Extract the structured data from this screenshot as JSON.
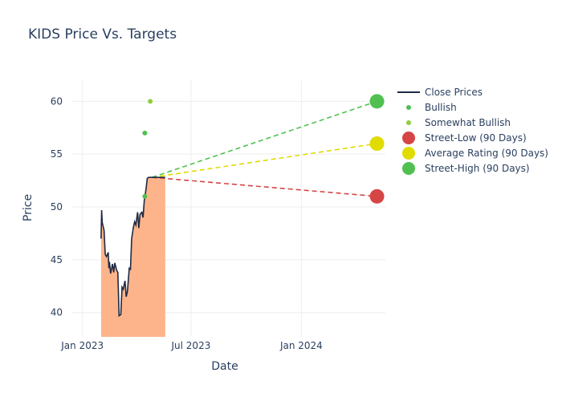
{
  "chart_data": {
    "type": "line",
    "title": "KIDS Price Vs. Targets",
    "xlabel": "Date",
    "ylabel": "Price",
    "xlim": [
      "2022-12-15",
      "2024-05-20"
    ],
    "ylim": [
      37.7,
      62
    ],
    "x_ticks": [
      {
        "date": "2023-01-01",
        "label": "Jan 2023"
      },
      {
        "date": "2023-07-01",
        "label": "Jul 2023"
      },
      {
        "date": "2024-01-01",
        "label": "Jan 2024"
      }
    ],
    "y_ticks": [
      40,
      45,
      50,
      55,
      60
    ],
    "grid": true,
    "legend_position": "right",
    "colors": {
      "close": "#1f2a44",
      "fill": "#fdb48a",
      "bullish": "#50c050",
      "somewhat_bullish": "#8fcf3c",
      "street_low": "#d64545",
      "average": "#e0dc00",
      "street_high": "#50c050",
      "grid": "#eeeeee"
    },
    "close_prices": {
      "name": "Close Prices",
      "x": [
        "2023-02-01",
        "2023-02-02",
        "2023-02-03",
        "2023-02-06",
        "2023-02-08",
        "2023-02-10",
        "2023-02-13",
        "2023-02-14",
        "2023-02-15",
        "2023-02-17",
        "2023-02-20",
        "2023-02-22",
        "2023-02-24",
        "2023-02-27",
        "2023-03-01",
        "2023-03-03",
        "2023-03-06",
        "2023-03-08",
        "2023-03-10",
        "2023-03-13",
        "2023-03-15",
        "2023-03-17",
        "2023-03-20",
        "2023-03-22",
        "2023-03-24",
        "2023-03-27",
        "2023-03-29",
        "2023-03-31",
        "2023-04-03",
        "2023-04-05",
        "2023-04-07",
        "2023-04-10",
        "2023-04-12",
        "2023-04-14",
        "2023-04-17",
        "2023-04-19",
        "2023-04-21",
        "2023-04-24",
        "2023-04-26",
        "2023-04-28",
        "2023-05-01",
        "2023-05-03",
        "2023-05-05",
        "2023-05-08",
        "2023-05-10",
        "2023-05-12",
        "2023-05-15",
        "2023-05-17",
        "2023-05-19"
      ],
      "y": [
        47.0,
        49.7,
        48.5,
        47.8,
        45.5,
        45.3,
        45.7,
        44.2,
        44.8,
        43.7,
        44.6,
        43.8,
        44.7,
        44.0,
        43.8,
        39.7,
        39.8,
        42.4,
        42.2,
        43.0,
        41.5,
        42.0,
        44.2,
        44.1,
        47.0,
        48.1,
        48.6,
        48.3,
        49.5,
        48.0,
        49.3,
        49.5,
        49.0,
        50.6,
        51.7,
        52.7,
        52.8,
        52.8,
        52.8,
        52.8,
        52.8,
        52.8,
        52.8,
        52.8,
        52.8,
        52.8,
        52.8,
        52.8,
        52.8
      ]
    },
    "bullish": {
      "name": "Bullish",
      "points": [
        {
          "x": "2023-04-15",
          "y": 57
        },
        {
          "x": "2023-04-15",
          "y": 51
        }
      ]
    },
    "somewhat_bullish": {
      "name": "Somewhat Bullish",
      "points": [
        {
          "x": "2023-04-24",
          "y": 60
        }
      ]
    },
    "targets": [
      {
        "name": "Street-Low (90 Days)",
        "from": {
          "x": "2023-04-27",
          "y": 52.8
        },
        "to": {
          "x": "2024-05-06",
          "y": 51
        }
      },
      {
        "name": "Average Rating (90 Days)",
        "from": {
          "x": "2023-04-27",
          "y": 52.8
        },
        "to": {
          "x": "2024-05-06",
          "y": 56
        }
      },
      {
        "name": "Street-High (90 Days)",
        "from": {
          "x": "2023-04-27",
          "y": 52.8
        },
        "to": {
          "x": "2024-05-06",
          "y": 60
        }
      }
    ]
  }
}
